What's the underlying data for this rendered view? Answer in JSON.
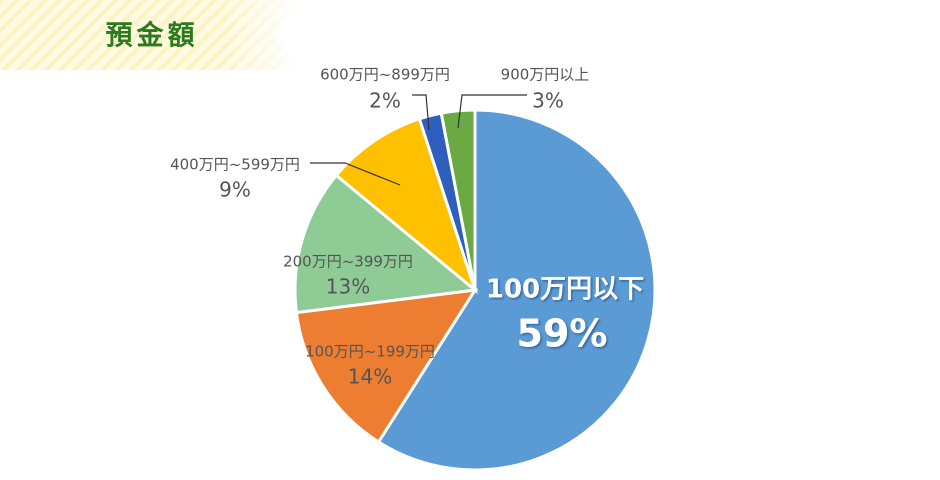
{
  "chart_data": {
    "type": "pie",
    "title": "預金額",
    "categories": [
      "100万円以下",
      "100万円~199万円",
      "200万円~399万円",
      "400万円~599万円",
      "600万円~899万円",
      "900万円以上"
    ],
    "values": [
      59,
      14,
      13,
      9,
      2,
      3
    ],
    "value_labels": [
      "59%",
      "14%",
      "13%",
      "9%",
      "2%",
      "3%"
    ],
    "colors": [
      "#5b9bd5",
      "#ed7d31",
      "#8ecb95",
      "#ffc000",
      "#2e5fbf",
      "#6aa944"
    ]
  }
}
